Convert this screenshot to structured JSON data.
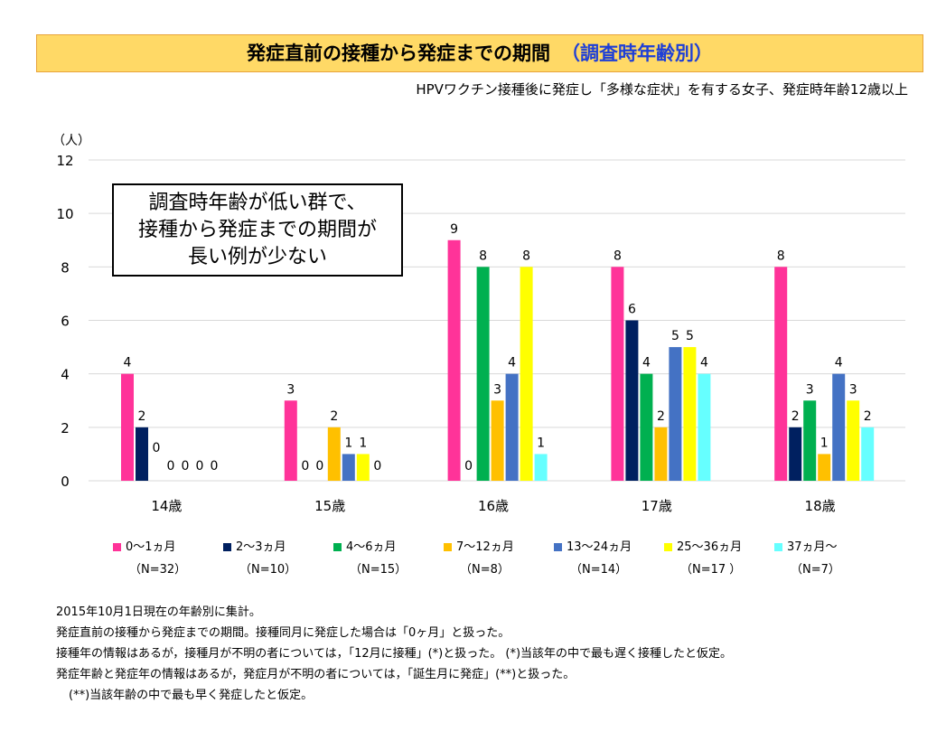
{
  "header": {
    "title": "発症直前の接種から発症までの期間",
    "title_sub": "（調査時年齢別）",
    "subtitle": "HPVワクチン接種後に発症し「多様な症状」を有する女子、発症時年齢12歳以上"
  },
  "note_box": {
    "lines": [
      "調査時年齢が低い群で、",
      "接種から発症までの期間が",
      "長い例が少ない"
    ]
  },
  "chart_data": {
    "type": "bar",
    "ylabel": "（人）",
    "ylim": [
      0,
      12
    ],
    "yticks": [
      0,
      2,
      4,
      6,
      8,
      10,
      12
    ],
    "grid": true,
    "legend_position": "bottom",
    "categories": [
      "14歳",
      "15歳",
      "16歳",
      "17歳",
      "18歳"
    ],
    "series": [
      {
        "name": "0～1ヵ月",
        "n": "（N=32）",
        "color": "#ff3399",
        "values": [
          4,
          3,
          9,
          8,
          8
        ]
      },
      {
        "name": "2～3ヵ月",
        "n": "（N=10）",
        "color": "#002060",
        "values": [
          2,
          0,
          0,
          6,
          2
        ]
      },
      {
        "name": "4～6ヵ月",
        "n": "（N=15）",
        "color": "#00b050",
        "values": [
          0,
          0,
          8,
          4,
          3
        ]
      },
      {
        "name": "7～12ヵ月",
        "n": "（N=8）",
        "color": "#ffc000",
        "values": [
          0,
          2,
          3,
          2,
          1
        ]
      },
      {
        "name": "13～24ヵ月",
        "n": "（N=14）",
        "color": "#4472c4",
        "values": [
          0,
          1,
          4,
          5,
          4
        ]
      },
      {
        "name": "25～36ヵ月",
        "n": "（N=17 ）",
        "color": "#ffff00",
        "values": [
          0,
          1,
          8,
          5,
          3
        ]
      },
      {
        "name": "37ヵ月～",
        "n": "（N=7）",
        "color": "#66ffff",
        "values": [
          0,
          0,
          1,
          4,
          2
        ]
      }
    ]
  },
  "footnotes": [
    "2015年10月1日現在の年齢別に集計。",
    "発症直前の接種から発症までの期間。接種同月に発症した場合は「0ヶ月」と扱った。",
    "接種年の情報はあるが，接種月が不明の者については，「12月に接種」(*)と扱った。 (*)当該年の中で最も遅く接種したと仮定。",
    "発症年齢と発症年の情報はあるが，発症月が不明の者については，「誕生月に発症」(**)と扱った。",
    "(**)当該年齢の中で最も早く発症したと仮定。"
  ]
}
